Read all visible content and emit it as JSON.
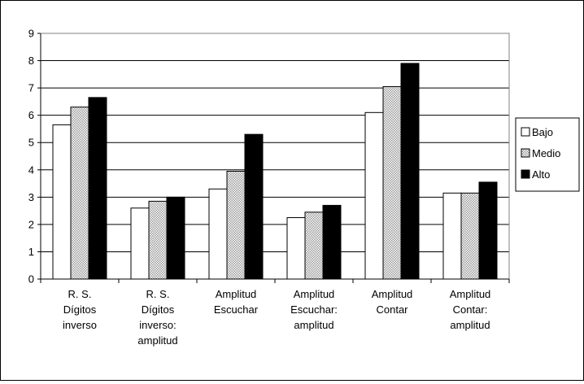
{
  "chart_data": {
    "type": "bar",
    "categories": [
      [
        "R. S.",
        "Dígitos",
        "inverso"
      ],
      [
        "R. S.",
        "Dígitos",
        "inverso:",
        "amplitud"
      ],
      [
        "Amplitud",
        "Escuchar"
      ],
      [
        "Amplitud",
        "Escuchar:",
        "amplitud"
      ],
      [
        "Amplitud",
        "Contar"
      ],
      [
        "Amplitud",
        "Contar:",
        "amplitud"
      ]
    ],
    "series": [
      {
        "name": "Bajo",
        "values": [
          5.65,
          2.6,
          3.3,
          2.25,
          6.1,
          3.15
        ],
        "fill": "#ffffff",
        "pattern": "none"
      },
      {
        "name": "Medio",
        "values": [
          6.3,
          2.85,
          3.95,
          2.45,
          7.05,
          3.15
        ],
        "fill": "#d4d4d4",
        "pattern": "dots"
      },
      {
        "name": "Alto",
        "values": [
          6.65,
          3.0,
          5.3,
          2.7,
          7.9,
          3.55
        ],
        "fill": "#000000",
        "pattern": "none"
      }
    ],
    "ylim": [
      0,
      9
    ],
    "yticks": [
      "0",
      "1",
      "2",
      "3",
      "4",
      "5",
      "6",
      "7",
      "8",
      "9"
    ],
    "grid": true,
    "legend_position": "right",
    "title": "",
    "xlabel": "",
    "ylabel": ""
  }
}
